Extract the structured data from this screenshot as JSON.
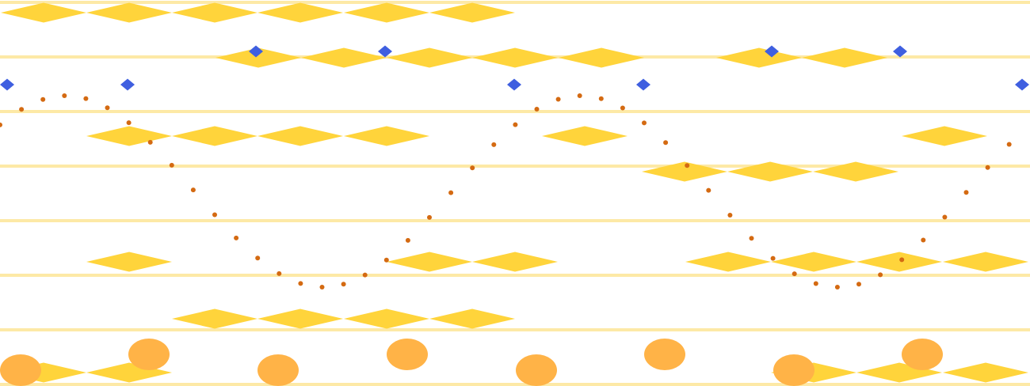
{
  "pattern": {
    "colors": {
      "background": "#ffffff",
      "stripe": "#fde9a6",
      "diamond": "#ffd43b",
      "marker": "#3f5fe0",
      "dots": "#d46a12",
      "circle": "#ffb347"
    },
    "shapes": [
      "yellow-diamond",
      "blue-diamond-marker",
      "orange-dot",
      "orange-circle"
    ]
  }
}
